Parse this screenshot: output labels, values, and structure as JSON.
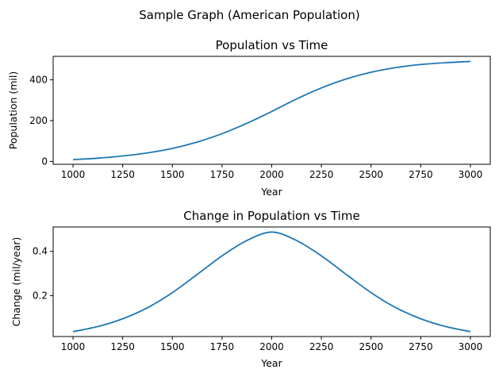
{
  "figure": {
    "suptitle": "Sample Graph (American Population)"
  },
  "colors": {
    "line": "#1f77b4"
  },
  "chart_data": [
    {
      "type": "line",
      "title": "Population vs Time",
      "xlabel": "Year",
      "ylabel": "Population (mil)",
      "xlim": [
        900,
        3100
      ],
      "ylim": [
        -14,
        515
      ],
      "xticks": [
        1000,
        1250,
        1500,
        1750,
        2000,
        2250,
        2500,
        2750,
        3000
      ],
      "yticks": [
        0,
        200,
        400
      ],
      "grid": false,
      "series": [
        {
          "x": [
            1000,
            1125,
            1250,
            1375,
            1500,
            1625,
            1750,
            1875,
            2000,
            2125,
            2250,
            2375,
            2500,
            2625,
            2750,
            2875,
            3000
          ],
          "y": [
            9,
            16,
            27,
            42,
            64,
            95,
            136,
            187,
            245,
            306,
            360,
            404,
            437,
            460,
            475,
            484,
            490
          ]
        }
      ]
    },
    {
      "type": "line",
      "title": "Change in Population vs Time",
      "xlabel": "Year",
      "ylabel": "Change (mil/year)",
      "xlim": [
        900,
        3100
      ],
      "ylim": [
        0.016,
        0.51
      ],
      "xticks": [
        1000,
        1250,
        1500,
        1750,
        2000,
        2250,
        2500,
        2750,
        3000
      ],
      "yticks": [
        0.2,
        0.4
      ],
      "grid": false,
      "series": [
        {
          "x": [
            1000,
            1125,
            1250,
            1375,
            1500,
            1625,
            1750,
            1875,
            2000,
            2125,
            2250,
            2375,
            2500,
            2625,
            2750,
            2875,
            3000
          ],
          "y": [
            0.038,
            0.061,
            0.096,
            0.146,
            0.214,
            0.296,
            0.38,
            0.449,
            0.487,
            0.449,
            0.38,
            0.296,
            0.214,
            0.146,
            0.096,
            0.061,
            0.038
          ]
        }
      ]
    }
  ]
}
